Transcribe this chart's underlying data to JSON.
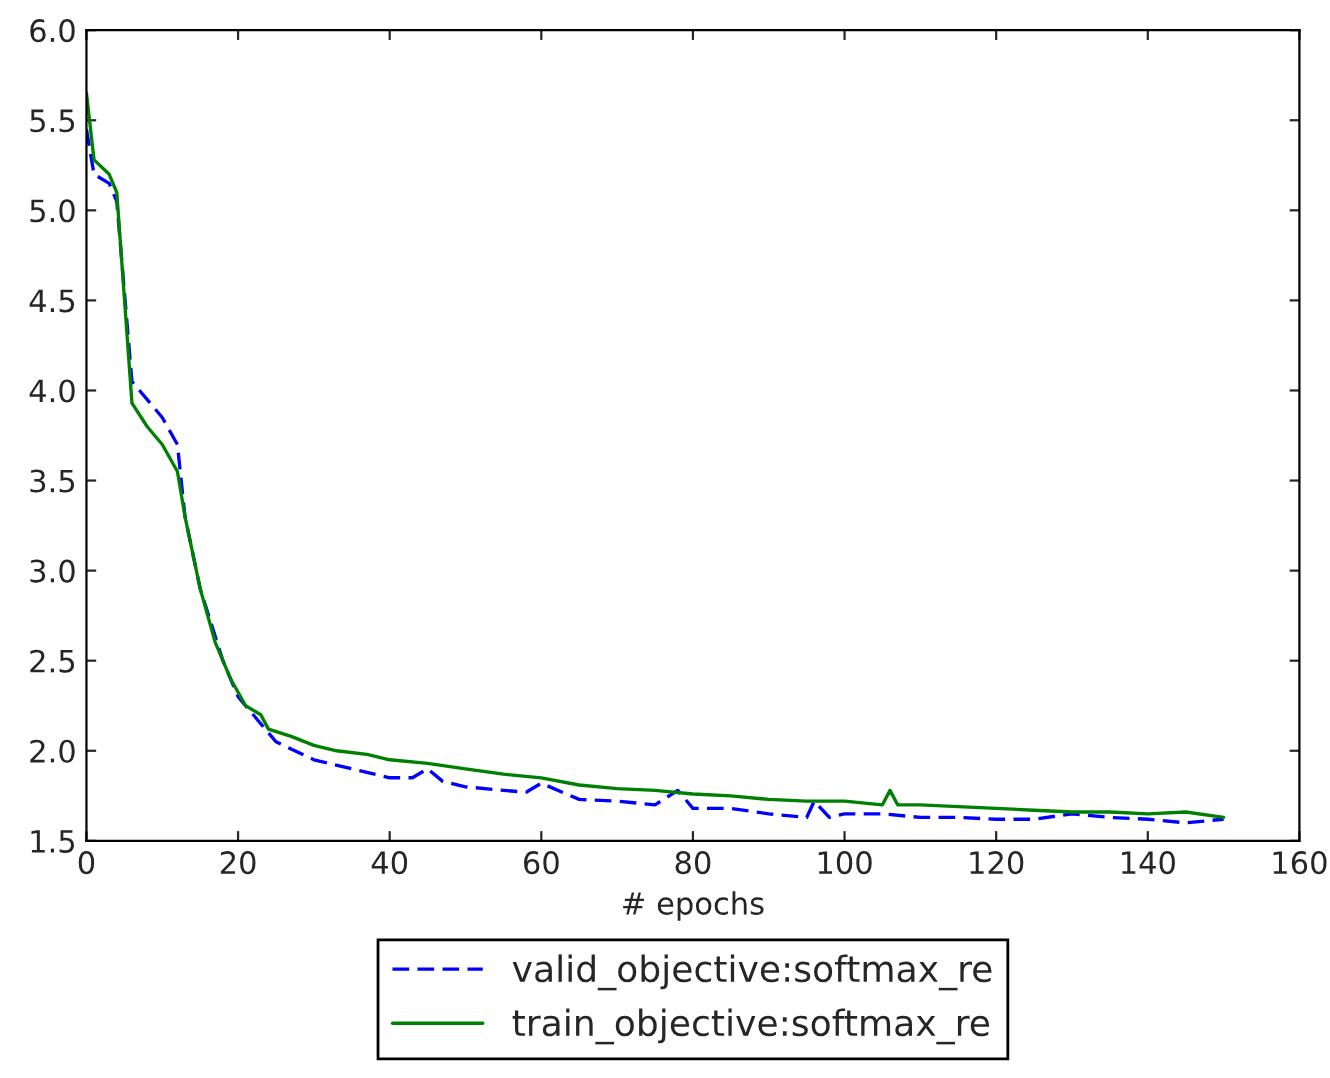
{
  "chart_data": {
    "type": "line",
    "xlabel": "# epochs",
    "xlim": [
      0,
      160
    ],
    "xticks": [
      0,
      20,
      40,
      60,
      80,
      100,
      120,
      140,
      160
    ],
    "ylim": [
      1.5,
      6.0
    ],
    "yticks": [
      {
        "value": 1.5,
        "label": "1.5"
      },
      {
        "value": 2.0,
        "label": "2.0"
      },
      {
        "value": 2.5,
        "label": "2.5"
      },
      {
        "value": 3.0,
        "label": "3.0"
      },
      {
        "value": 3.5,
        "label": "3.5"
      },
      {
        "value": 4.0,
        "label": "4.0"
      },
      {
        "value": 4.5,
        "label": "4.5"
      },
      {
        "value": 5.0,
        "label": "5.0"
      },
      {
        "value": 5.5,
        "label": "5.5"
      },
      {
        "value": 6.0,
        "label": "6.0"
      }
    ],
    "grid": false,
    "legend": "bottom",
    "series": [
      {
        "name": "valid_objective:softmax_re",
        "color": "#0000ff",
        "line_style": "dashed",
        "x": [
          0,
          1,
          3,
          4,
          6,
          7,
          10,
          12,
          13,
          15,
          18,
          20,
          22,
          25,
          30,
          35,
          40,
          43,
          45,
          47,
          50,
          55,
          58,
          60,
          65,
          70,
          75,
          78,
          80,
          85,
          90,
          95,
          96,
          98,
          100,
          105,
          110,
          115,
          120,
          125,
          130,
          135,
          140,
          145,
          150
        ],
        "values": [
          5.45,
          5.2,
          5.15,
          5.05,
          4.05,
          4.0,
          3.85,
          3.7,
          3.3,
          2.9,
          2.5,
          2.3,
          2.2,
          2.05,
          1.95,
          1.9,
          1.85,
          1.85,
          1.9,
          1.83,
          1.8,
          1.78,
          1.77,
          1.82,
          1.73,
          1.72,
          1.7,
          1.78,
          1.68,
          1.68,
          1.65,
          1.63,
          1.72,
          1.63,
          1.65,
          1.65,
          1.63,
          1.63,
          1.62,
          1.62,
          1.65,
          1.63,
          1.62,
          1.6,
          1.62
        ]
      },
      {
        "name": "train_objective:softmax_re",
        "color": "#008000",
        "line_style": "solid",
        "x": [
          0,
          1,
          3,
          4,
          6,
          8,
          10,
          12,
          13,
          15,
          17,
          19,
          21,
          23,
          24,
          27,
          30,
          33,
          37,
          40,
          45,
          50,
          55,
          60,
          65,
          70,
          75,
          80,
          85,
          90,
          95,
          100,
          105,
          106,
          107,
          110,
          115,
          120,
          125,
          130,
          135,
          140,
          145,
          150
        ],
        "values": [
          5.65,
          5.28,
          5.2,
          5.1,
          3.93,
          3.8,
          3.7,
          3.55,
          3.3,
          2.9,
          2.6,
          2.4,
          2.25,
          2.2,
          2.12,
          2.08,
          2.03,
          2.0,
          1.98,
          1.95,
          1.93,
          1.9,
          1.87,
          1.85,
          1.81,
          1.79,
          1.78,
          1.76,
          1.75,
          1.73,
          1.72,
          1.72,
          1.7,
          1.78,
          1.7,
          1.7,
          1.69,
          1.68,
          1.67,
          1.66,
          1.66,
          1.65,
          1.66,
          1.63
        ]
      }
    ]
  }
}
